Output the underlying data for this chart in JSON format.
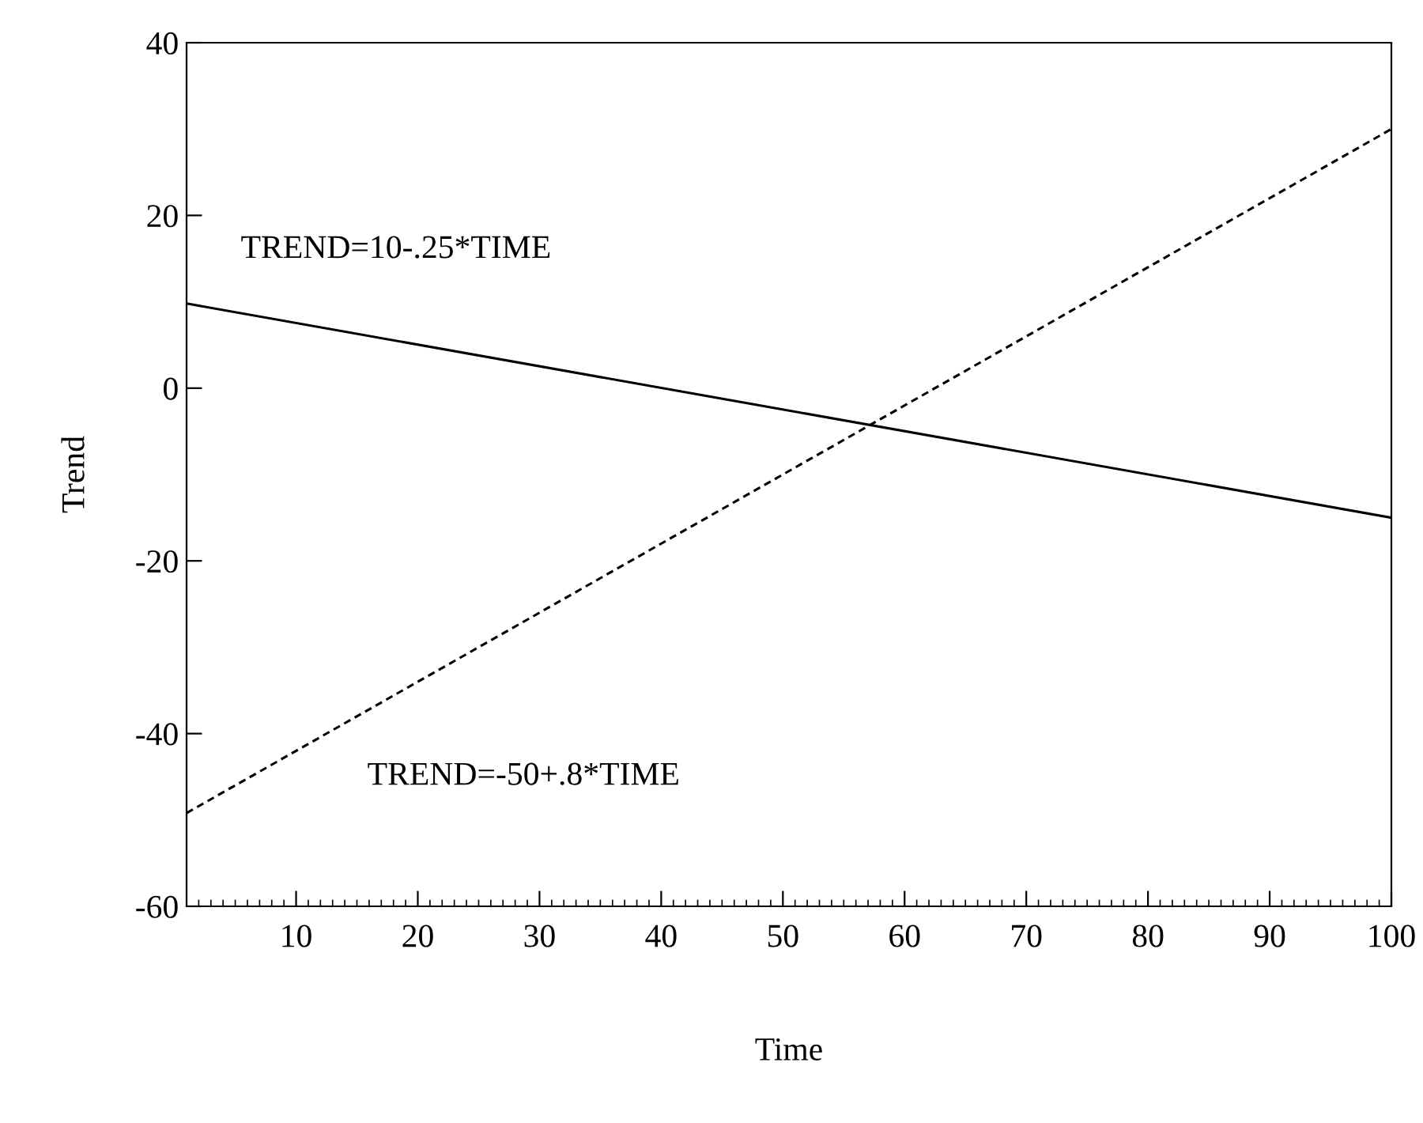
{
  "chart_data": {
    "type": "line",
    "xlabel": "Time",
    "ylabel": "Trend",
    "x": [
      1,
      100
    ],
    "series": [
      {
        "color": "#000000",
        "values": [
          9.8,
          -15
        ],
        "line_style": "solid"
      },
      {
        "color": "#000000",
        "values": [
          -49.2,
          30
        ],
        "line_style": "dashed"
      }
    ],
    "xlim": [
      1,
      100
    ],
    "xticks": [
      10,
      20,
      30,
      40,
      50,
      60,
      70,
      80,
      90,
      100
    ],
    "ylim": [
      -60,
      40
    ],
    "yticks": [
      -60,
      -40,
      -20,
      0,
      20,
      40
    ],
    "grid": false,
    "legend": false,
    "marker": "none",
    "annotations": [
      "TREND=10-.25*TIME",
      "TREND=-50+.8*TIME"
    ]
  }
}
